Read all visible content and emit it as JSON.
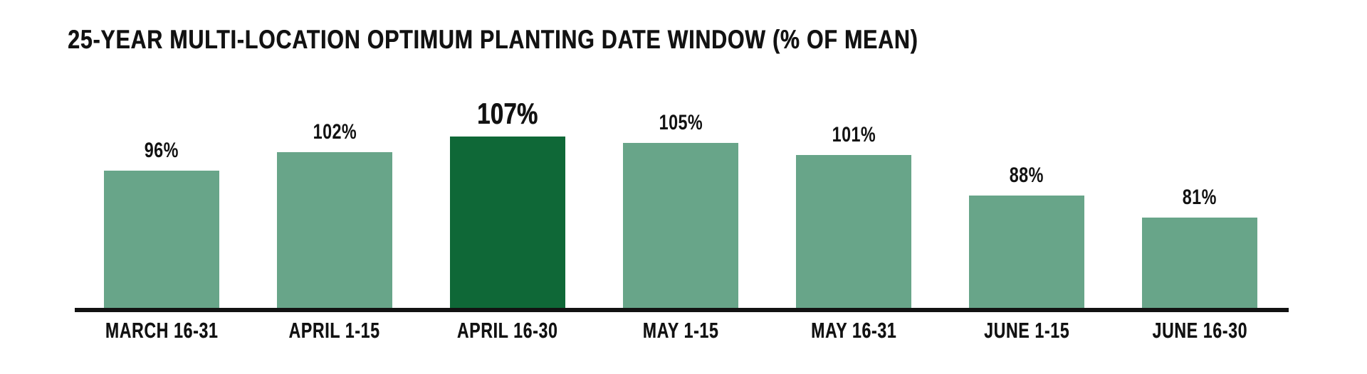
{
  "title": "25-YEAR MULTI-LOCATION OPTIMUM PLANTING DATE WINDOW (% OF MEAN)",
  "colors": {
    "bar": "#68A589",
    "bar_highlight": "#0F6837",
    "axis": "#121212",
    "text": "#121212",
    "background": "#FFFFFF"
  },
  "chart_data": {
    "type": "bar",
    "title": "25-YEAR MULTI-LOCATION OPTIMUM PLANTING DATE WINDOW (% OF MEAN)",
    "categories": [
      "MARCH 16-31",
      "APRIL 1-15",
      "APRIL 16-30",
      "MAY 1-15",
      "MAY 16-31",
      "JUNE 1-15",
      "JUNE 16-30"
    ],
    "values": [
      96,
      102,
      107,
      105,
      101,
      88,
      81
    ],
    "value_labels": [
      "96%",
      "102%",
      "107%",
      "105%",
      "101%",
      "88%",
      "81%"
    ],
    "unit": "%",
    "highlighted_index": 2,
    "highlighted_category": "APRIL 16-30",
    "xlabel": "",
    "ylabel": "",
    "grid": false,
    "legend": false,
    "y_axis_hidden": true,
    "baseline_axis": true
  }
}
